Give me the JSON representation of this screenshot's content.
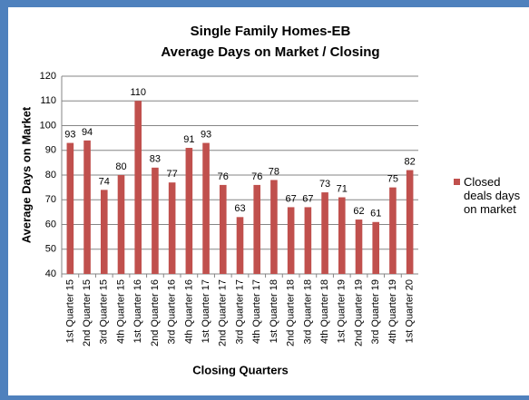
{
  "chart_data": {
    "type": "bar",
    "title": "Single Family Homes-EB",
    "subtitle": "Average Days on Market / Closing",
    "x_label": "Closing Quarters",
    "y_label": "Average Days on Market",
    "categories": [
      "1st Quarter 15",
      "2nd Quarter 15",
      "3rd Quarter 15",
      "4th Quarter 15",
      "1st Quarter 16",
      "2nd Quarter 16",
      "3rd Quarter 16",
      "4th Quarter 16",
      "1st Quarter 17",
      "2nd Quarter 17",
      "3rd Quarter 17",
      "4th Quarter 17",
      "1st Quarter 18",
      "2nd Quarter 18",
      "3rd Quarter 18",
      "4th Quarter 18",
      "1st Quarter 19",
      "2nd Quarter 19",
      "3rd Quarter 19",
      "4th Quarter 19",
      "1st Quarter 20"
    ],
    "series": [
      {
        "name": "Closed deals days on market",
        "color": "#c0504d",
        "values": [
          93,
          94,
          74,
          80,
          110,
          83,
          77,
          91,
          93,
          76,
          63,
          76,
          78,
          67,
          67,
          73,
          71,
          62,
          61,
          75,
          82
        ]
      }
    ],
    "ylim": [
      40,
      120
    ],
    "yticks": [
      40,
      50,
      60,
      70,
      80,
      90,
      100,
      110,
      120
    ],
    "grid": true,
    "legend": "right"
  }
}
